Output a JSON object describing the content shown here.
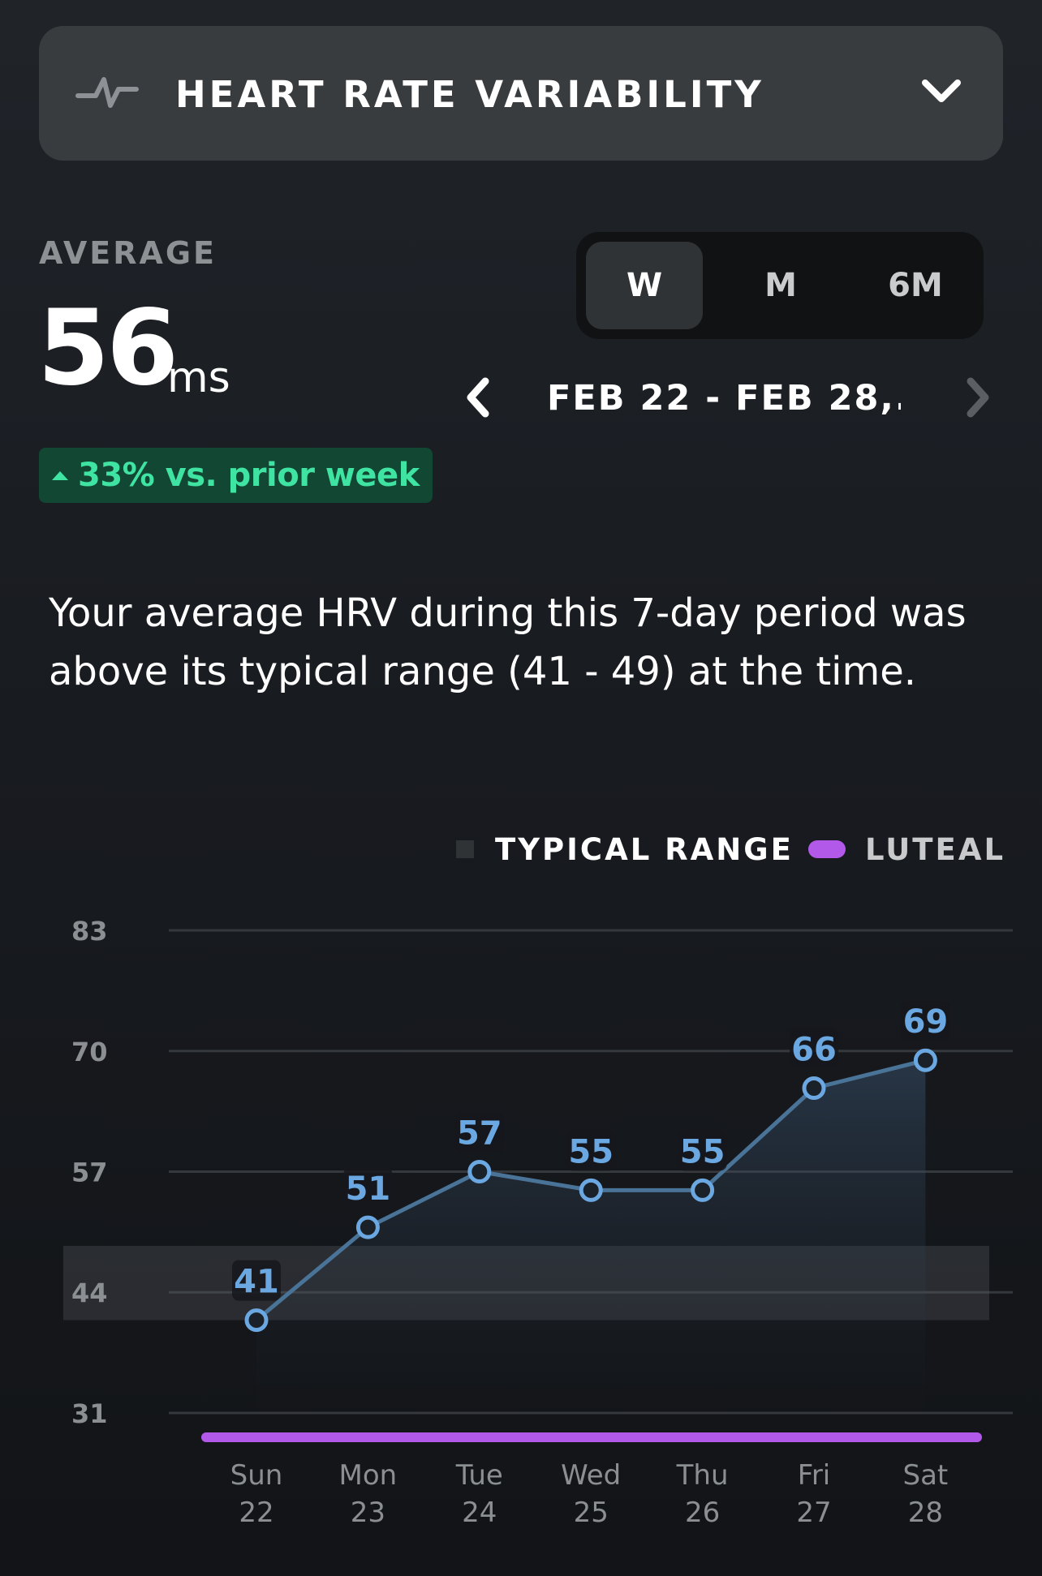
{
  "header": {
    "metric_title": "HEART RATE VARIABILITY",
    "metric_icon": "pulse-icon",
    "dropdown_icon": "chevron-down-icon"
  },
  "summary": {
    "average_label": "AVERAGE",
    "average_value": "56",
    "average_unit": "ms",
    "change_text": "33% vs. prior week",
    "change_icon": "triangle-up-icon",
    "change_color": "#3fe3a2"
  },
  "period": {
    "options": [
      "W",
      "M",
      "6M"
    ],
    "selected": "W",
    "date_range": "FEB 22 - FEB 28,...",
    "prev_icon": "chevron-left-icon",
    "next_icon": "chevron-right-icon"
  },
  "description": "Your average HRV during this 7-day period was above its typical range (41 - 49) at the time.",
  "legend": {
    "typical_range_label": "TYPICAL RANGE",
    "luteal_label": "LUTEAL",
    "luteal_color": "#b259ea"
  },
  "chart_data": {
    "type": "area",
    "title": "",
    "xlabel": "",
    "ylabel": "",
    "ylim": [
      31,
      83
    ],
    "yticks": [
      83,
      70,
      57,
      44,
      31
    ],
    "typical_range": [
      41,
      49
    ],
    "categories": [
      {
        "day": "Sun",
        "date": "22"
      },
      {
        "day": "Mon",
        "date": "23"
      },
      {
        "day": "Tue",
        "date": "24"
      },
      {
        "day": "Wed",
        "date": "25"
      },
      {
        "day": "Thu",
        "date": "26"
      },
      {
        "day": "Fri",
        "date": "27"
      },
      {
        "day": "Sat",
        "date": "28"
      }
    ],
    "series": [
      {
        "values": [
          41,
          51,
          57,
          55,
          55,
          66,
          69
        ],
        "color": "#6ba7e0"
      }
    ],
    "luteal_phase": {
      "from": "Sun 22",
      "to": "Sat 28"
    },
    "grid": true
  }
}
